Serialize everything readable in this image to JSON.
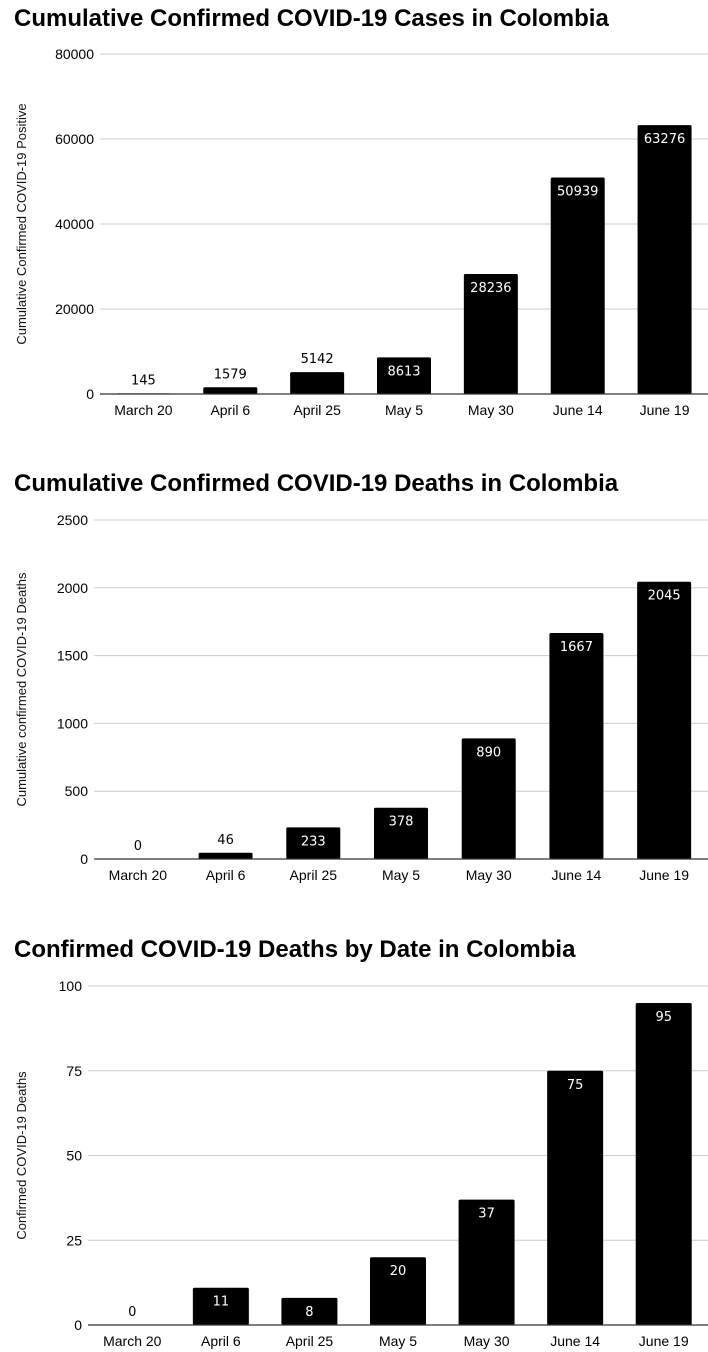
{
  "chart_data": [
    {
      "type": "bar",
      "title": "Cumulative Confirmed COVID-19 Cases in Colombia",
      "xlabel": "",
      "ylabel": "Cumulative Confirmed COVID-19 Positive",
      "categories": [
        "March 20",
        "April 6",
        "April 25",
        "May 5",
        "May 30",
        "June 14",
        "June 19"
      ],
      "values": [
        145,
        1579,
        5142,
        8613,
        28236,
        50939,
        63276
      ],
      "ylim": [
        0,
        80000
      ],
      "yticks": [
        0,
        20000,
        40000,
        60000,
        80000
      ],
      "ytick_labels": [
        "0",
        "20000",
        "40000",
        "60000",
        "80000"
      ],
      "data_labels": [
        "145",
        "1579",
        "5142",
        "8613",
        "28236",
        "50939",
        "63276"
      ],
      "bar_color": "#000000",
      "grid": true,
      "legend": "none"
    },
    {
      "type": "bar",
      "title": "Cumulative Confirmed COVID-19 Deaths in Colombia",
      "xlabel": "",
      "ylabel": "Cumulative confirmed COVID-19 Deaths",
      "categories": [
        "March 20",
        "April 6",
        "April 25",
        "May 5",
        "May 30",
        "June 14",
        "June 19"
      ],
      "values": [
        0,
        46,
        233,
        378,
        890,
        1667,
        2045
      ],
      "ylim": [
        0,
        2500
      ],
      "yticks": [
        0,
        500,
        1000,
        1500,
        2000,
        2500
      ],
      "ytick_labels": [
        "0",
        "500",
        "1000",
        "1500",
        "2000",
        "2500"
      ],
      "data_labels": [
        "0",
        "46",
        "233",
        "378",
        "890",
        "1667",
        "2045"
      ],
      "bar_color": "#000000",
      "grid": true,
      "legend": "none"
    },
    {
      "type": "bar",
      "title": "Confirmed COVID-19 Deaths by Date in Colombia",
      "xlabel": "",
      "ylabel": "Confirmed COVID-19 Deaths",
      "categories": [
        "March 20",
        "April 6",
        "April 25",
        "May 5",
        "May 30",
        "June 14",
        "June 19"
      ],
      "values": [
        0,
        11,
        8,
        20,
        37,
        75,
        95
      ],
      "ylim": [
        0,
        100
      ],
      "yticks": [
        0,
        25,
        50,
        75,
        100
      ],
      "ytick_labels": [
        "0",
        "25",
        "50",
        "75",
        "100"
      ],
      "data_labels": [
        "0",
        "11",
        "8",
        "20",
        "37",
        "75",
        "95"
      ],
      "bar_color": "#000000",
      "grid": true,
      "legend": "none"
    }
  ]
}
